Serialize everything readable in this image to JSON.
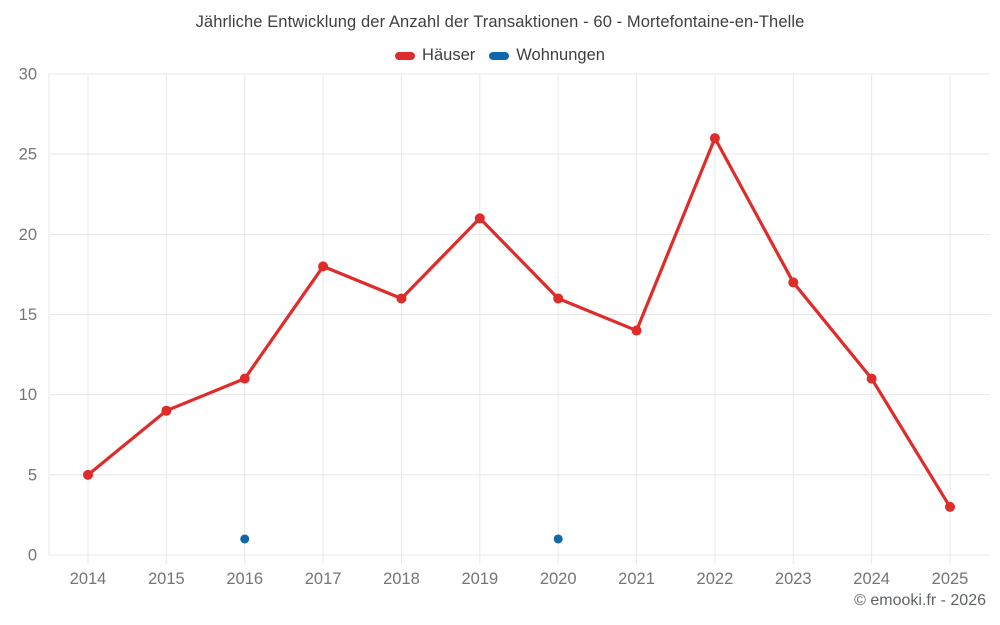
{
  "footer": {
    "copyright": "© emooki.fr - 2026"
  },
  "colors": {
    "haeuser": "#e02b2b",
    "wohnungen": "#1168a8",
    "grid": "#e8e8e8",
    "axis_label": "#757575",
    "title_text": "#3f3f3f",
    "copyright_text": "#5f6368",
    "background": "#ffffff"
  },
  "chart_data": {
    "type": "line",
    "title": "Jährliche Entwicklung der Anzahl der Transaktionen - 60 - Mortefontaine-en-Thelle",
    "categories": [
      "2014",
      "2015",
      "2016",
      "2017",
      "2018",
      "2019",
      "2020",
      "2021",
      "2022",
      "2023",
      "2024",
      "2025"
    ],
    "series": [
      {
        "name": "Häuser",
        "color": "#e02b2b",
        "style": "line+markers",
        "values": [
          5,
          9,
          11,
          18,
          16,
          21,
          16,
          14,
          26,
          17,
          11,
          3
        ]
      },
      {
        "name": "Wohnungen",
        "color": "#1168a8",
        "style": "markers",
        "values": [
          null,
          null,
          1,
          null,
          null,
          null,
          1,
          null,
          null,
          null,
          null,
          null
        ]
      }
    ],
    "xlabel": "",
    "ylabel": "",
    "ylim": [
      0,
      30
    ],
    "yticks": [
      0,
      5,
      10,
      15,
      20,
      25,
      30
    ],
    "ytick_step": 5,
    "grid": true,
    "legend_position": "top"
  }
}
